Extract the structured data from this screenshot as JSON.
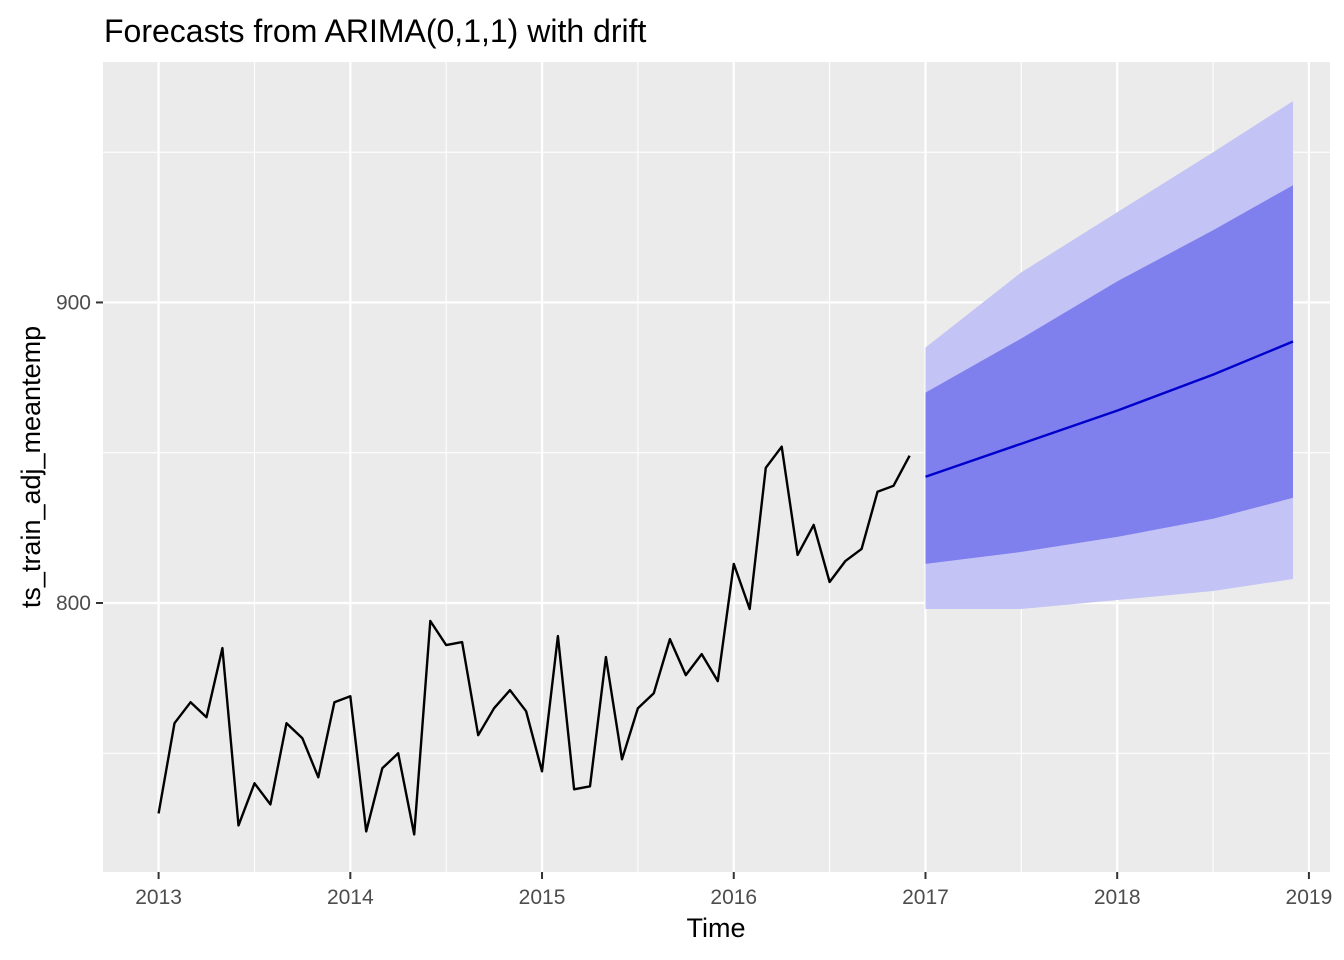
{
  "chart_data": {
    "type": "line",
    "title": "Forecasts from ARIMA(0,1,1) with drift",
    "xlabel": "Time",
    "ylabel": "ts_train_adj_meantemp",
    "xlim": [
      2012.71,
      2019.11
    ],
    "ylim": [
      710.5,
      980
    ],
    "x_ticks": [
      2013,
      2014,
      2015,
      2016,
      2017,
      2018,
      2019
    ],
    "x_tick_labels": [
      "2013",
      "2014",
      "2015",
      "2016",
      "2017",
      "2018",
      "2019"
    ],
    "y_ticks": [
      800,
      900
    ],
    "y_tick_labels": [
      "800",
      "900"
    ],
    "y_minor_grid": [
      750,
      850,
      950
    ],
    "grid": true,
    "legend": "none",
    "colors": {
      "panel_background": "#ebebeb",
      "grid": "#ffffff",
      "history_line": "#000000",
      "forecast_line": "#0000cc",
      "interval_95": "#c3c3f5",
      "interval_80": "#7f7fee"
    },
    "series": [
      {
        "type": "history",
        "x": [
          2013.0,
          2013.083,
          2013.167,
          2013.25,
          2013.333,
          2013.417,
          2013.5,
          2013.583,
          2013.667,
          2013.75,
          2013.833,
          2013.917,
          2014.0,
          2014.083,
          2014.167,
          2014.25,
          2014.333,
          2014.417,
          2014.5,
          2014.583,
          2014.667,
          2014.75,
          2014.833,
          2014.917,
          2015.0,
          2015.083,
          2015.167,
          2015.25,
          2015.333,
          2015.417,
          2015.5,
          2015.583,
          2015.667,
          2015.75,
          2015.833,
          2015.917,
          2016.0,
          2016.083,
          2016.167,
          2016.25,
          2016.333,
          2016.417,
          2016.5,
          2016.583,
          2016.667,
          2016.75,
          2016.833,
          2016.917
        ],
        "values": [
          730,
          760,
          767,
          762,
          785,
          726,
          740,
          733,
          760,
          755,
          742,
          767,
          769,
          724,
          745,
          750,
          723,
          794,
          786,
          787,
          756,
          765,
          771,
          764,
          744,
          789,
          738,
          739,
          782,
          748,
          765,
          770,
          788,
          776,
          783,
          774,
          813,
          798,
          845,
          852,
          816,
          826,
          807,
          814,
          818,
          837,
          839,
          849
        ]
      },
      {
        "name": "Forecast",
        "type": "forecast",
        "x": [
          2017.0,
          2017.5,
          2018.0,
          2018.5,
          2018.917
        ],
        "values": [
          842,
          853,
          864,
          876,
          887
        ],
        "lo80": [
          813,
          817,
          822,
          828,
          835
        ],
        "hi80": [
          870,
          888,
          907,
          924,
          939
        ],
        "lo95": [
          798,
          798,
          801,
          804,
          808
        ],
        "hi95": [
          885,
          910,
          930,
          950,
          967
        ]
      }
    ]
  }
}
